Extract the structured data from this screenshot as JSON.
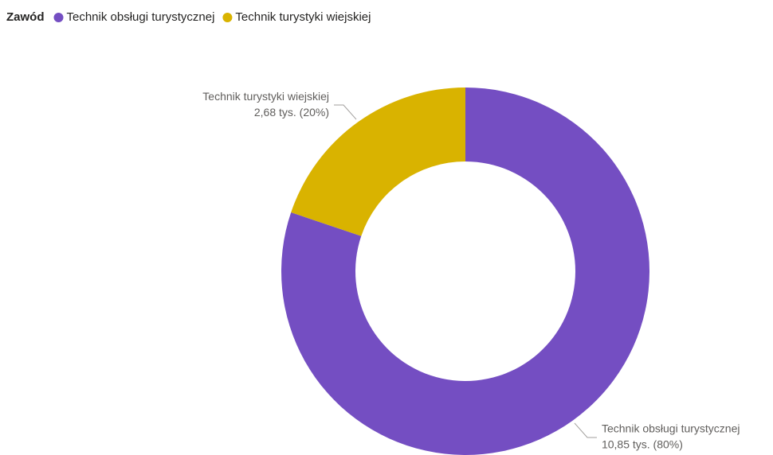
{
  "chart_data": {
    "type": "donut",
    "legend_title": "Zawód",
    "categories": [
      "Technik obsługi turystycznej",
      "Technik turystyki wiejskiej"
    ],
    "values": [
      10.85,
      2.68
    ],
    "value_labels": [
      "10,85 tys. (80%)",
      "2,68 tys. (20%)"
    ],
    "colors": [
      "#744EC2",
      "#D9B300"
    ],
    "legend": "top-left"
  }
}
